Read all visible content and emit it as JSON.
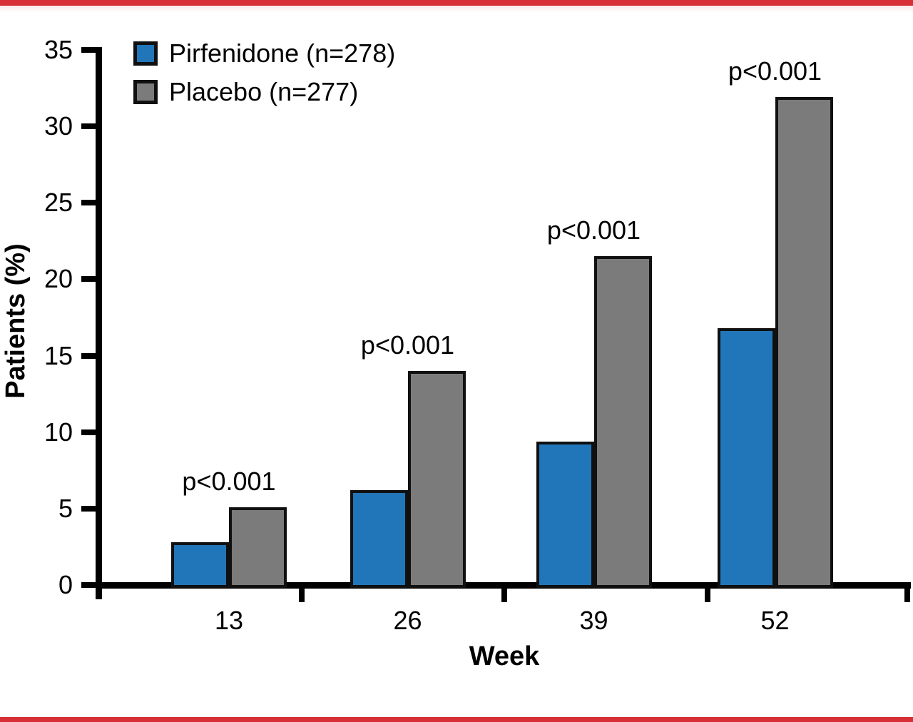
{
  "page": {
    "background": "#ffffff",
    "accent_color": "#d62f35"
  },
  "chart_data": {
    "type": "bar",
    "title": "",
    "xlabel": "Week",
    "ylabel": "Patients (%)",
    "categories": [
      "13",
      "26",
      "39",
      "52"
    ],
    "series": [
      {
        "name": "Pirfenidone (n=278)",
        "color": "#2176b9",
        "values": [
          2.8,
          6.2,
          9.4,
          16.8
        ]
      },
      {
        "name": "Placebo (n=277)",
        "color": "#7b7b7b",
        "values": [
          5.1,
          14.0,
          21.5,
          31.9
        ]
      }
    ],
    "annotations": [
      "p<0.001",
      "p<0.001",
      "p<0.001",
      "p<0.001"
    ],
    "annotation_position": "above-group",
    "ylim": [
      0,
      35
    ],
    "yticks": [
      0,
      5,
      10,
      15,
      20,
      25,
      30,
      35
    ],
    "grid": false,
    "legend_position": "top-left",
    "bar_border_color": "#101010",
    "axis_color": "#000000"
  }
}
